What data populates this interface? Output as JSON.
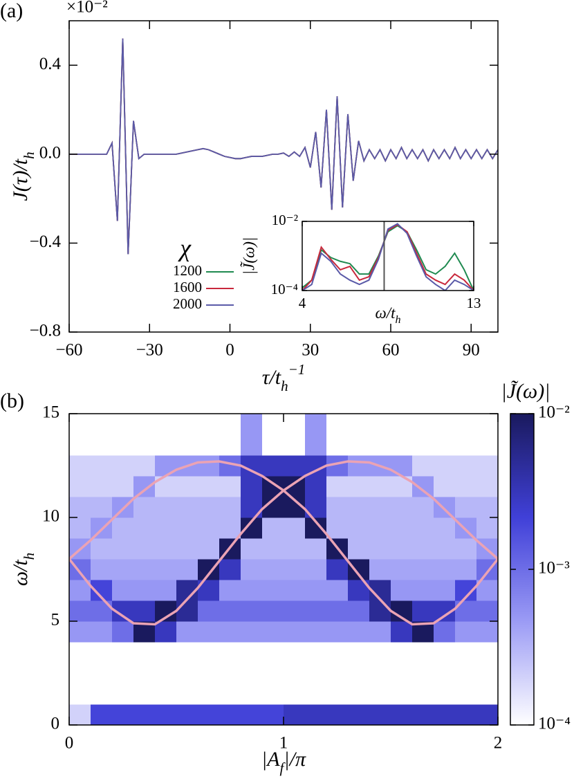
{
  "chart_data": [
    {
      "type": "line",
      "panel_label": "(a)",
      "x": [
        -60,
        -58,
        -56,
        -54,
        -52,
        -50,
        -48,
        -46,
        -44,
        -42,
        -40,
        -38,
        -36,
        -34,
        -32,
        -30,
        -28,
        -26,
        -24,
        -22,
        -20,
        -18,
        -16,
        -14,
        -12,
        -10,
        -8,
        -6,
        -4,
        -2,
        0,
        2,
        4,
        6,
        8,
        10,
        12,
        14,
        16,
        18,
        20,
        22,
        24,
        26,
        28,
        30,
        32,
        34,
        36,
        38,
        40,
        42,
        44,
        46,
        48,
        50,
        52,
        54,
        56,
        58,
        60,
        62,
        64,
        66,
        68,
        70,
        72,
        74,
        76,
        78,
        80,
        82,
        84,
        86,
        88,
        90,
        92,
        94,
        96,
        98,
        100
      ],
      "series": [
        {
          "name": "1200",
          "color": "#1f8a50",
          "values": [
            0,
            0,
            0,
            0,
            0,
            0,
            0,
            0,
            0.05,
            -0.3,
            0.52,
            -0.45,
            0.15,
            -0.02,
            0,
            0,
            0,
            0,
            0,
            0,
            0,
            0.005,
            0.01,
            0.015,
            0.02,
            0.025,
            0.02,
            0.01,
            0,
            -0.01,
            -0.015,
            -0.02,
            -0.02,
            -0.015,
            -0.01,
            -0.01,
            -0.01,
            -0.005,
            0,
            0,
            0.005,
            -0.01,
            0.01,
            -0.01,
            0.03,
            -0.06,
            0.1,
            -0.15,
            0.2,
            -0.25,
            0.26,
            -0.24,
            0.18,
            -0.12,
            0.06,
            -0.03,
            0.02,
            -0.02,
            0.02,
            -0.03,
            0.02,
            -0.02,
            0.03,
            -0.02,
            0.02,
            -0.02,
            0.02,
            -0.03,
            0.02,
            -0.02,
            0.02,
            -0.02,
            0.03,
            -0.02,
            0.02,
            -0.02,
            0.02,
            -0.02,
            0.02,
            -0.02,
            0.02
          ]
        },
        {
          "name": "1600",
          "color": "#c8283c",
          "values": [
            0,
            0,
            0,
            0,
            0,
            0,
            0,
            0,
            0.05,
            -0.3,
            0.52,
            -0.45,
            0.15,
            -0.02,
            0,
            0,
            0,
            0,
            0,
            0,
            0,
            0.005,
            0.01,
            0.015,
            0.02,
            0.025,
            0.02,
            0.01,
            0,
            -0.01,
            -0.015,
            -0.02,
            -0.02,
            -0.015,
            -0.01,
            -0.01,
            -0.01,
            -0.005,
            0,
            0,
            0.005,
            -0.01,
            0.01,
            -0.01,
            0.03,
            -0.06,
            0.1,
            -0.15,
            0.2,
            -0.25,
            0.26,
            -0.24,
            0.18,
            -0.12,
            0.06,
            -0.03,
            0.02,
            -0.02,
            0.02,
            -0.03,
            0.02,
            -0.02,
            0.03,
            -0.02,
            0.02,
            -0.02,
            0.02,
            -0.03,
            0.02,
            -0.02,
            0.02,
            -0.02,
            0.03,
            -0.02,
            0.02,
            -0.02,
            0.02,
            -0.02,
            0.02,
            -0.02,
            0.02
          ]
        },
        {
          "name": "2000",
          "color": "#5a5aa8",
          "values": [
            0,
            0,
            0,
            0,
            0,
            0,
            0,
            0,
            0.05,
            -0.3,
            0.52,
            -0.45,
            0.15,
            -0.02,
            0,
            0,
            0,
            0,
            0,
            0,
            0,
            0.005,
            0.01,
            0.015,
            0.02,
            0.025,
            0.02,
            0.01,
            0,
            -0.01,
            -0.015,
            -0.02,
            -0.02,
            -0.015,
            -0.01,
            -0.01,
            -0.01,
            -0.005,
            0,
            0,
            0.005,
            -0.01,
            0.01,
            -0.01,
            0.03,
            -0.06,
            0.1,
            -0.15,
            0.2,
            -0.25,
            0.26,
            -0.24,
            0.18,
            -0.12,
            0.06,
            -0.03,
            0.02,
            -0.02,
            0.02,
            -0.03,
            0.02,
            -0.02,
            0.03,
            -0.02,
            0.02,
            -0.02,
            0.02,
            -0.03,
            0.02,
            -0.02,
            0.02,
            -0.02,
            0.03,
            -0.02,
            0.02,
            -0.02,
            0.02,
            -0.02,
            0.02,
            -0.02,
            0.02
          ]
        }
      ],
      "xlim": [
        -60,
        100
      ],
      "xticks": [
        {
          "value": -60,
          "label": "−60"
        },
        {
          "value": -30,
          "label": "−30"
        },
        0,
        30,
        60,
        90
      ],
      "ylim": [
        -0.8,
        0.6
      ],
      "yticks": [
        {
          "value": -0.8,
          "label": "−0.8"
        },
        {
          "value": -0.4,
          "label": "−0.4"
        },
        {
          "value": 0,
          "label": "0.0"
        },
        0.4
      ],
      "y_multiplier": "×10⁻²",
      "xlabel": [
        {
          "t": "τ/t"
        },
        {
          "t": "h",
          "s": "sub"
        },
        {
          "t": "−1",
          "s": "sup"
        }
      ],
      "ylabel": [
        {
          "t": "J(τ)/t"
        },
        {
          "t": "h",
          "s": "sub"
        }
      ],
      "legend_title": "χ"
    },
    {
      "type": "line",
      "log_y": true,
      "x": [
        4,
        4.5,
        5,
        5.5,
        6,
        6.5,
        7,
        7.5,
        8,
        8.5,
        9,
        9.5,
        10,
        10.5,
        11,
        11.5,
        12,
        12.5,
        13
      ],
      "series": [
        {
          "color": "#1f8a50",
          "values": [
            0.00012,
            0.0002,
            0.0015,
            0.0009,
            0.0007,
            0.0006,
            0.0003,
            0.0003,
            0.001,
            0.005,
            0.0075,
            0.005,
            0.0015,
            0.0004,
            0.0003,
            0.0005,
            0.0012,
            0.0004,
            0.0001
          ]
        },
        {
          "color": "#c8283c",
          "values": [
            0.0001,
            0.0002,
            0.0018,
            0.0008,
            0.0004,
            0.0005,
            0.0002,
            0.00025,
            0.0009,
            0.0055,
            0.008,
            0.005,
            0.0012,
            0.0003,
            0.0002,
            0.00015,
            0.0003,
            0.0002,
            0.0001
          ]
        },
        {
          "color": "#5a5aa8",
          "values": [
            0.0001,
            0.00015,
            0.0012,
            0.0007,
            0.0003,
            0.0002,
            0.00015,
            0.0002,
            0.0008,
            0.006,
            0.0085,
            0.0045,
            0.001,
            0.00025,
            0.00015,
            0.0001,
            0.0002,
            0.00015,
            0.0001
          ]
        }
      ],
      "xlim": [
        4,
        13
      ],
      "xticks": [
        4,
        13
      ],
      "ylim": [
        0.0001,
        0.01
      ],
      "yticks": [
        {
          "value": 0.0001,
          "label": "10⁻⁴"
        },
        {
          "value": 0.01,
          "label": "10⁻²"
        }
      ],
      "vline": 8.3,
      "xlabel": [
        {
          "t": "ω/t"
        },
        {
          "t": "h",
          "s": "sub"
        }
      ],
      "ylabel": "|J̃(ω)|"
    },
    {
      "type": "heatmap",
      "panel_label": "(b)",
      "x": [
        0.05,
        0.15,
        0.25,
        0.35,
        0.45,
        0.55,
        0.65,
        0.75,
        0.85,
        0.95,
        1.05,
        1.15,
        1.25,
        1.35,
        1.45,
        1.55,
        1.65,
        1.75,
        1.85,
        1.95
      ],
      "y": [
        0.5,
        1.5,
        2.5,
        3.5,
        4.5,
        5.5,
        6.5,
        7.5,
        8.5,
        9.5,
        10.5,
        11.5,
        12.5,
        13.5,
        14.5
      ],
      "z": [
        [
          0.0002,
          0.002,
          0.002,
          0.002,
          0.002,
          0.002,
          0.002,
          0.002,
          0.002,
          0.002,
          0.003,
          0.003,
          0.003,
          0.003,
          0.003,
          0.003,
          0.003,
          0.003,
          0.003,
          0.003
        ],
        [
          0.0001,
          0.0001,
          0.0001,
          0.0001,
          0.0001,
          0.0001,
          0.0001,
          0.0001,
          0.0001,
          0.0001,
          0.0001,
          0.0001,
          0.0001,
          0.0001,
          0.0001,
          0.0001,
          0.0001,
          0.0001,
          0.0001,
          0.0001
        ],
        [
          0.0001,
          0.0001,
          0.0001,
          0.0001,
          0.0001,
          0.0001,
          0.0001,
          0.0001,
          0.0001,
          0.0001,
          0.0001,
          0.0001,
          0.0001,
          0.0001,
          0.0001,
          0.0001,
          0.0001,
          0.0001,
          0.0001,
          0.0001
        ],
        [
          0.0001,
          0.0001,
          0.0001,
          0.0001,
          0.0001,
          0.0001,
          0.0001,
          0.0001,
          0.0001,
          0.0001,
          0.0001,
          0.0001,
          0.0001,
          0.0001,
          0.0001,
          0.0001,
          0.0001,
          0.0001,
          0.0001,
          0.0001
        ],
        [
          0.0005,
          0.0005,
          0.001,
          0.01,
          0.003,
          0.0005,
          0.0005,
          0.0005,
          0.0005,
          0.0005,
          0.0005,
          0.0005,
          0.0005,
          0.0005,
          0.0005,
          0.003,
          0.01,
          0.001,
          0.0005,
          0.0005
        ],
        [
          0.001,
          0.001,
          0.003,
          0.003,
          0.01,
          0.005,
          0.001,
          0.001,
          0.001,
          0.001,
          0.001,
          0.001,
          0.001,
          0.001,
          0.005,
          0.01,
          0.003,
          0.003,
          0.001,
          0.001
        ],
        [
          0.0005,
          0.002,
          0.0005,
          0.0005,
          0.0005,
          0.005,
          0.003,
          0.0005,
          0.0005,
          0.0005,
          0.0005,
          0.0005,
          0.0005,
          0.003,
          0.005,
          0.0005,
          0.0005,
          0.0005,
          0.002,
          0.0005
        ],
        [
          0.001,
          0.0004,
          0.0004,
          0.0004,
          0.0004,
          0.0004,
          0.01,
          0.003,
          0.0004,
          0.0004,
          0.0004,
          0.0004,
          0.003,
          0.01,
          0.0004,
          0.0004,
          0.0004,
          0.0004,
          0.0004,
          0.001
        ],
        [
          0.0005,
          0.0003,
          0.0003,
          0.0003,
          0.0003,
          0.0003,
          0.0003,
          0.01,
          0.0003,
          0.0003,
          0.0003,
          0.0003,
          0.01,
          0.0003,
          0.0003,
          0.0003,
          0.0003,
          0.0003,
          0.0003,
          0.0005
        ],
        [
          0.0003,
          0.0005,
          0.0003,
          0.0003,
          0.0003,
          0.0003,
          0.0003,
          0.0003,
          0.01,
          0.0003,
          0.0003,
          0.01,
          0.0003,
          0.0003,
          0.0003,
          0.0003,
          0.0003,
          0.0003,
          0.0005,
          0.0003
        ],
        [
          0.0003,
          0.0003,
          0.0005,
          0.0003,
          0.0003,
          0.0003,
          0.0003,
          0.0003,
          0.003,
          0.01,
          0.01,
          0.003,
          0.0003,
          0.0003,
          0.0003,
          0.0003,
          0.0003,
          0.0005,
          0.0003,
          0.0003
        ],
        [
          0.0002,
          0.0002,
          0.0002,
          0.0005,
          0.0002,
          0.0002,
          0.0002,
          0.0002,
          0.003,
          0.01,
          0.01,
          0.003,
          0.0002,
          0.0002,
          0.0002,
          0.0002,
          0.0005,
          0.0002,
          0.0002,
          0.0002
        ],
        [
          0.0002,
          0.0002,
          0.0002,
          0.0002,
          0.0005,
          0.0005,
          0.0005,
          0.001,
          0.003,
          0.003,
          0.003,
          0.003,
          0.001,
          0.0005,
          0.0005,
          0.0005,
          0.0002,
          0.0002,
          0.0002,
          0.0002
        ],
        [
          0.0001,
          0.0001,
          0.0001,
          0.0001,
          0.0001,
          0.0001,
          0.0001,
          0.0001,
          0.0005,
          0.0001,
          0.0001,
          0.0005,
          0.0001,
          0.0001,
          0.0001,
          0.0001,
          0.0001,
          0.0001,
          0.0001,
          0.0001
        ],
        [
          0.0001,
          0.0001,
          0.0001,
          0.0001,
          0.0001,
          0.0001,
          0.0001,
          0.0001,
          0.0005,
          0.0001,
          0.0001,
          0.0005,
          0.0001,
          0.0001,
          0.0001,
          0.0001,
          0.0001,
          0.0001,
          0.0001,
          0.0001
        ]
      ],
      "xlim": [
        0,
        2
      ],
      "xticks": [
        0,
        1,
        2
      ],
      "ylim": [
        0,
        15
      ],
      "yticks": [
        0,
        5,
        10,
        15
      ],
      "xlabel": [
        {
          "t": "|A"
        },
        {
          "t": "f",
          "s": "sub"
        },
        {
          "t": "|/π"
        }
      ],
      "ylabel": [
        {
          "t": "ω/t"
        },
        {
          "t": "h",
          "s": "sub"
        }
      ],
      "colorbar": {
        "title": "|J̃(ω)|",
        "lim": [
          0.0001,
          0.01
        ],
        "log": true,
        "ticks": [
          {
            "value": 0.0001,
            "label": "10⁻⁴"
          },
          {
            "value": 0.001,
            "label": "10⁻³"
          },
          {
            "value": 0.01,
            "label": "10⁻²"
          }
        ],
        "colors": [
          "#ffffff",
          "#9b9bf5",
          "#4040d8",
          "#1a1a5e"
        ]
      },
      "lines": [
        {
          "color": "#eba3b4",
          "x": [
            0,
            0.1,
            0.2,
            0.3,
            0.4,
            0.5,
            0.6,
            0.7,
            0.8,
            0.9,
            1,
            1.1,
            1.2,
            1.3,
            1.4,
            1.5,
            1.6,
            1.7,
            1.8,
            1.9,
            2
          ],
          "values": [
            8,
            6.7,
            5.6,
            4.9,
            4.85,
            5.5,
            6.6,
            7.9,
            9.2,
            10.4,
            11.3,
            12,
            12.5,
            12.7,
            12.65,
            12.3,
            11.7,
            10.9,
            9.9,
            8.9,
            8
          ]
        },
        {
          "color": "#eba3b4",
          "x": [
            0,
            0.1,
            0.2,
            0.3,
            0.4,
            0.5,
            0.6,
            0.7,
            0.8,
            0.9,
            1,
            1.1,
            1.2,
            1.3,
            1.4,
            1.5,
            1.6,
            1.7,
            1.8,
            1.9,
            2
          ],
          "values": [
            8,
            8.9,
            9.9,
            10.9,
            11.7,
            12.3,
            12.65,
            12.7,
            12.5,
            12,
            11.3,
            10.4,
            9.2,
            7.9,
            6.6,
            5.5,
            4.85,
            4.9,
            5.6,
            6.7,
            8
          ]
        }
      ]
    }
  ]
}
